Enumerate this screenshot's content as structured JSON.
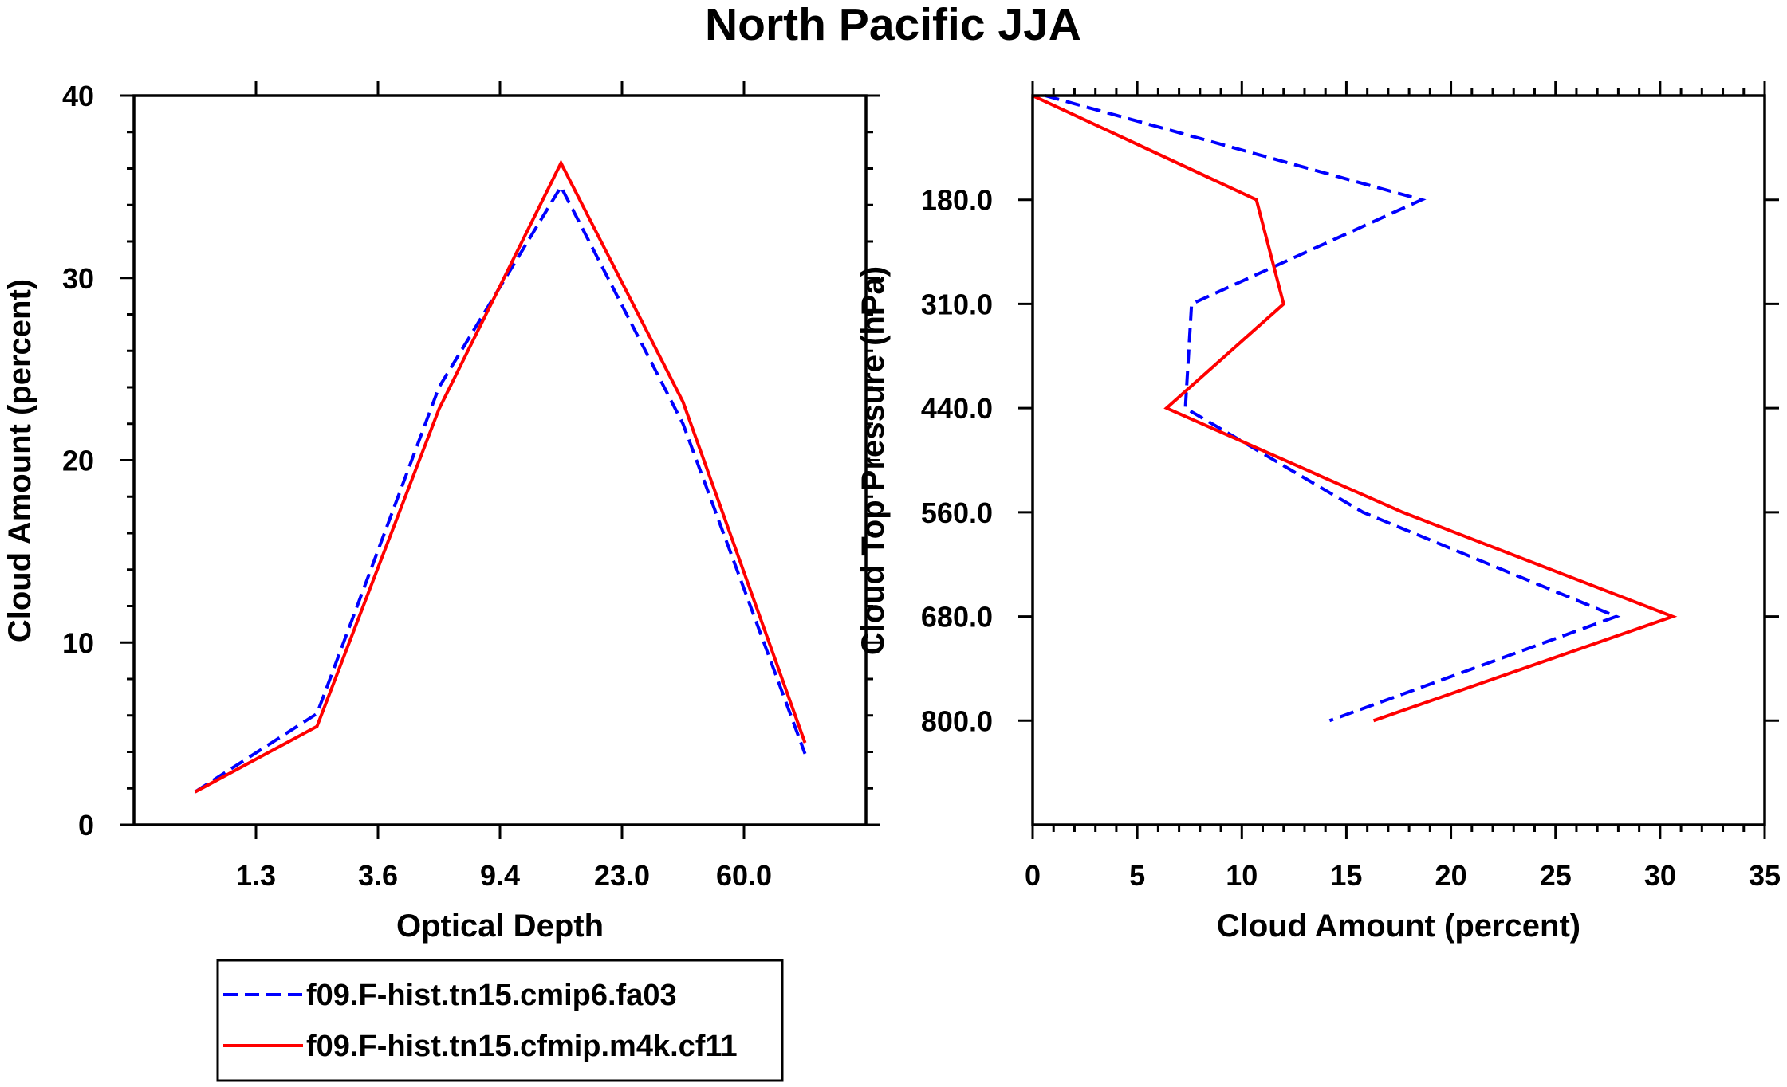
{
  "title": "North Pacific JJA",
  "chart_data": [
    {
      "type": "line",
      "xlabel": "Optical Depth",
      "ylabel": "Cloud Amount (percent)",
      "x_tick_labels": [
        "1.3",
        "3.6",
        "9.4",
        "23.0",
        "60.0"
      ],
      "x_bin_edges": [
        0,
        1.3,
        3.6,
        9.4,
        23.0,
        60.0,
        380
      ],
      "y_tick_labels": [
        "0",
        "10",
        "20",
        "30",
        "40"
      ],
      "ylim": [
        0,
        40
      ],
      "series": [
        {
          "name": "f09.F-hist.tn15.cmip6.fa03",
          "color": "#0000ff",
          "dash": "dashed",
          "x": [
            0,
            1,
            2,
            3,
            4,
            5
          ],
          "values": [
            1.8,
            6.1,
            24.0,
            35.0,
            22.0,
            3.9
          ]
        },
        {
          "name": "f09.F-hist.tn15.cfmip.m4k.cf11",
          "color": "#ff0000",
          "dash": "solid",
          "x": [
            0,
            1,
            2,
            3,
            4,
            5
          ],
          "values": [
            1.8,
            5.4,
            22.8,
            36.3,
            23.2,
            4.5
          ]
        }
      ]
    },
    {
      "type": "line",
      "xlabel": "Cloud Amount (percent)",
      "ylabel": "Cloud Top Pressure (hPa)",
      "x_tick_labels": [
        "0",
        "5",
        "10",
        "15",
        "20",
        "25",
        "30",
        "35"
      ],
      "xlim": [
        0,
        35
      ],
      "y_tick_labels": [
        "180.0",
        "310.0",
        "440.0",
        "560.0",
        "680.0",
        "800.0"
      ],
      "y_levels": [
        "50",
        "180.0",
        "310.0",
        "440.0",
        "560.0",
        "680.0",
        "800.0",
        "1000"
      ],
      "series": [
        {
          "name": "f09.F-hist.tn15.cmip6.fa03",
          "color": "#0000ff",
          "dash": "dashed",
          "values": [
            0.6,
            18.6,
            7.6,
            7.3,
            15.8,
            27.9,
            14.2
          ],
          "y": [
            0,
            1,
            2,
            3,
            4,
            5,
            6
          ]
        },
        {
          "name": "f09.F-hist.tn15.cfmip.m4k.cf11",
          "color": "#ff0000",
          "dash": "solid",
          "values": [
            0.0,
            10.7,
            12.0,
            6.4,
            17.7,
            30.6,
            16.3
          ],
          "y": [
            0,
            1,
            2,
            3,
            4,
            5,
            6
          ]
        }
      ]
    }
  ],
  "legend": {
    "items": [
      {
        "label": "f09.F-hist.tn15.cmip6.fa03",
        "color": "#0000ff",
        "dash": "dashed"
      },
      {
        "label": "f09.F-hist.tn15.cfmip.m4k.cf11",
        "color": "#ff0000",
        "dash": "solid"
      }
    ]
  }
}
